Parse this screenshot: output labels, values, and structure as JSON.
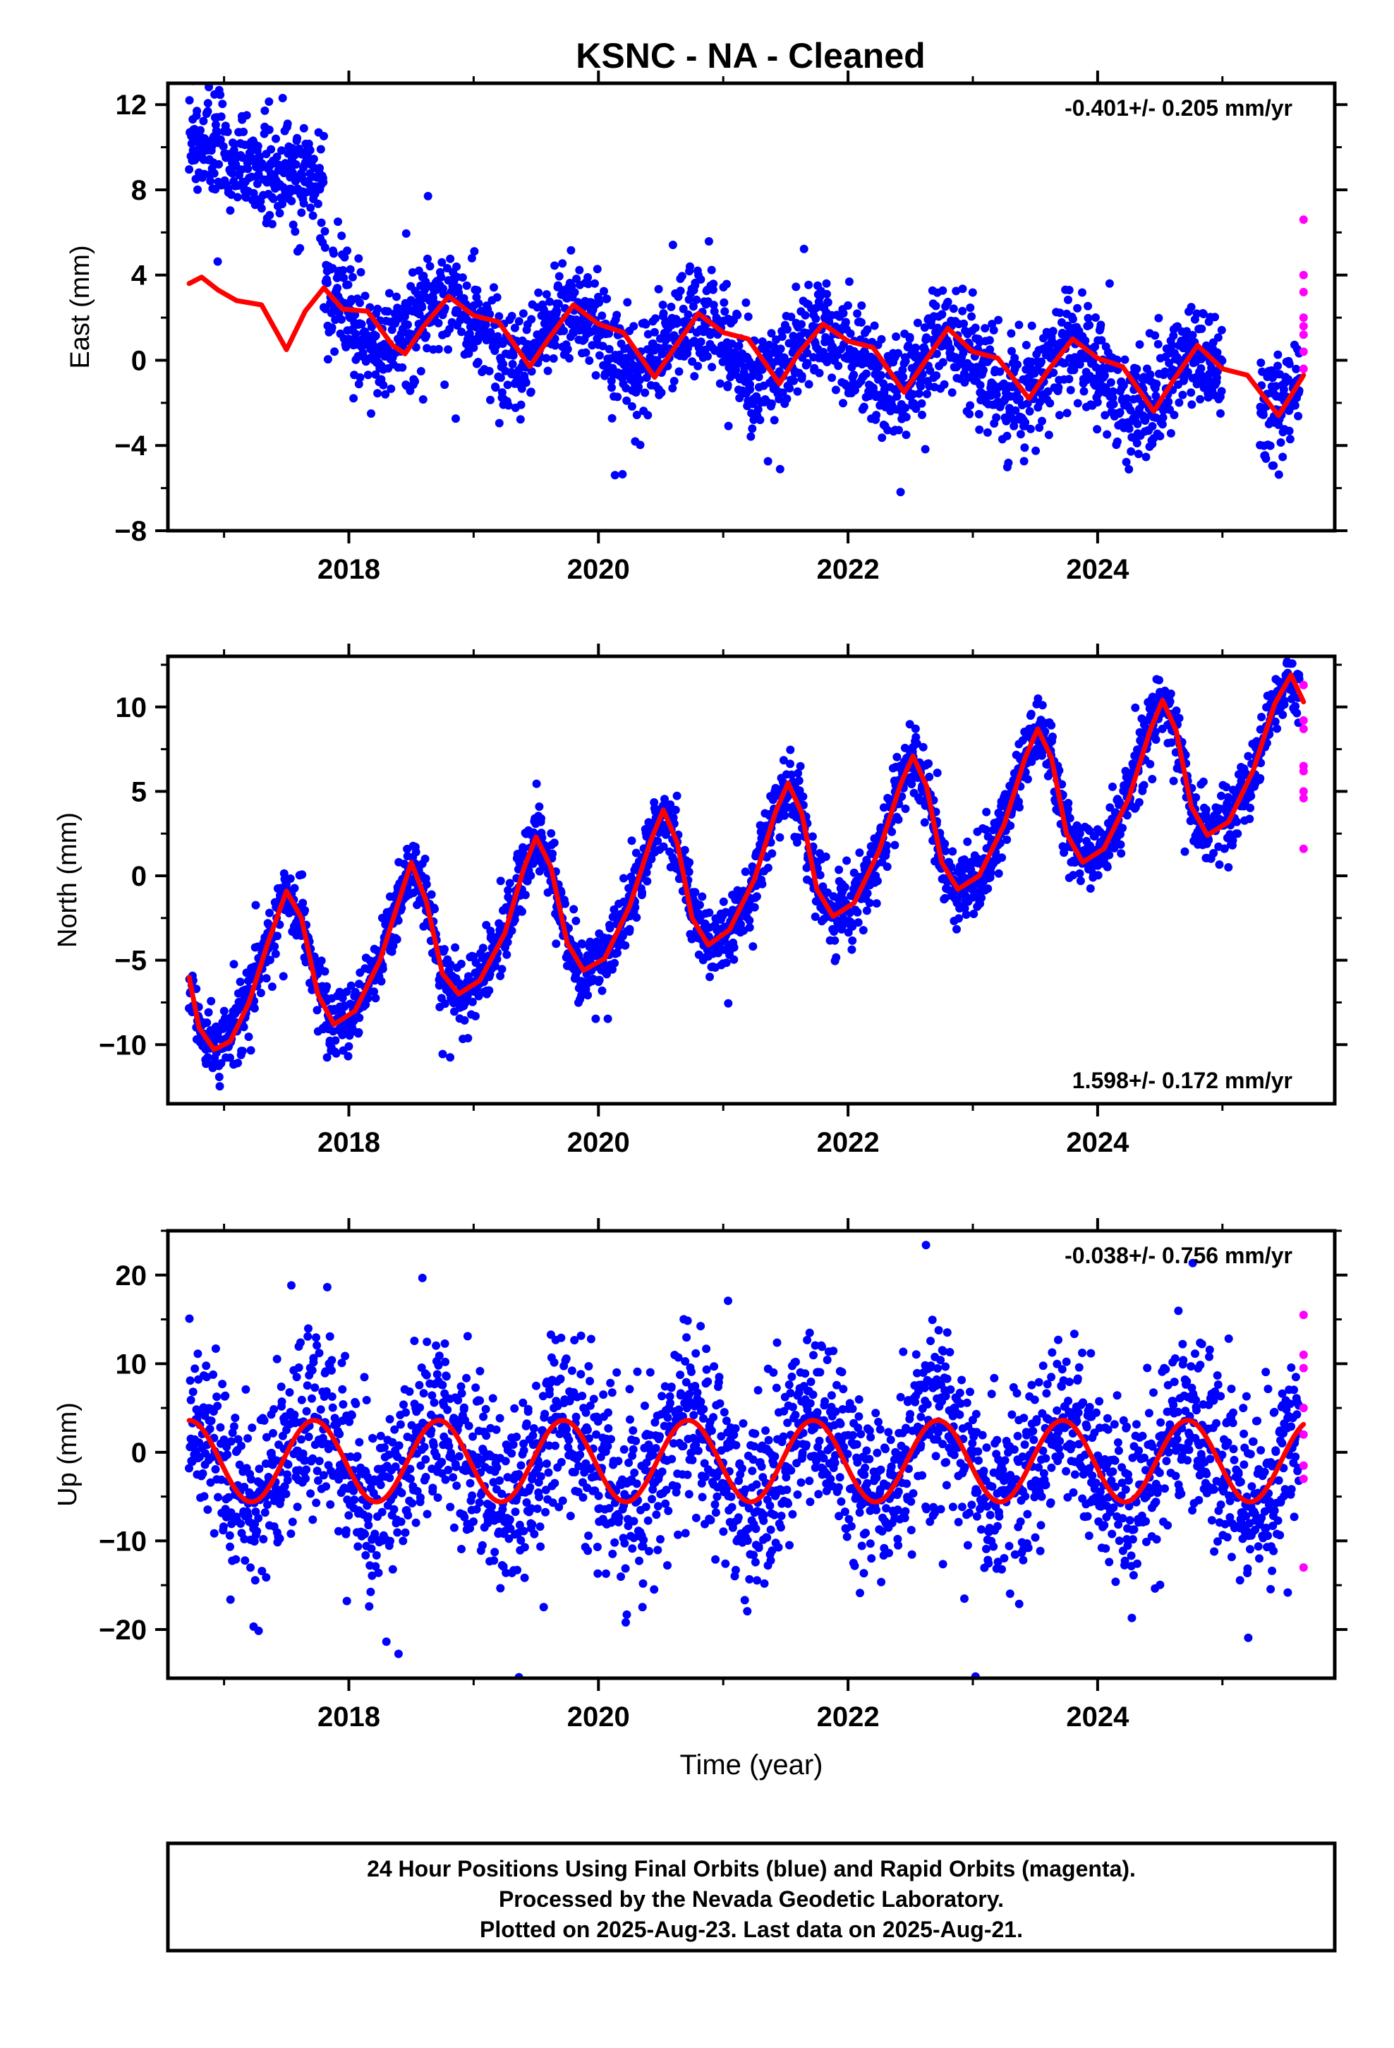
{
  "title": "KSNC  - NA - Cleaned",
  "colors": {
    "final": "#0000ff",
    "rapid": "#ff00ff",
    "model": "#ff0000",
    "frame": "#000000"
  },
  "chart_data": [
    {
      "type": "scatter",
      "id": "east",
      "ylabel": "East (mm)",
      "ylim": [
        -8,
        13
      ],
      "yticks": [
        -8,
        -4,
        0,
        4,
        8,
        12
      ],
      "xlim": [
        2016.55,
        2025.9
      ],
      "xticks": [
        2018,
        2020,
        2022,
        2024
      ],
      "xminor": [
        2017,
        2019,
        2021,
        2023,
        2025
      ],
      "rate": "-0.401+/- 0.205 mm/yr",
      "rate_position": "top-right",
      "series": [
        {
          "kind": "final",
          "segments": [
            {
              "x": [
                2016.72,
                2017.8
              ],
              "offset": 10.0,
              "trend": -1.5,
              "amp": 0.3,
              "noise": 1.2
            },
            {
              "x": [
                2017.8,
                2025.0
              ],
              "offset": 2.0,
              "trend": -0.45,
              "amp": 1.3,
              "noise": 1.2
            },
            {
              "x": [
                2025.3,
                2025.62
              ],
              "offset": -2.0,
              "trend": 0,
              "amp": 0.6,
              "noise": 1.3
            }
          ]
        },
        {
          "kind": "rapid",
          "x": 2025.65,
          "values": [
            6.6,
            4.0,
            3.2,
            2.0,
            1.6,
            1.2,
            0.4,
            -0.4
          ]
        },
        {
          "kind": "model",
          "points": [
            [
              2016.72,
              3.6
            ],
            [
              2016.82,
              3.9
            ],
            [
              2016.95,
              3.3
            ],
            [
              2017.1,
              2.8
            ],
            [
              2017.3,
              2.6
            ],
            [
              2017.5,
              0.5
            ],
            [
              2017.65,
              2.3
            ],
            [
              2017.8,
              3.4
            ],
            [
              2017.95,
              2.4
            ],
            [
              2018.15,
              2.3
            ],
            [
              2018.35,
              0.7
            ],
            [
              2018.45,
              0.3
            ],
            [
              2018.6,
              1.6
            ],
            [
              2018.8,
              3.0
            ],
            [
              2019.0,
              2.1
            ],
            [
              2019.2,
              1.8
            ],
            [
              2019.45,
              -0.3
            ],
            [
              2019.6,
              1.0
            ],
            [
              2019.8,
              2.6
            ],
            [
              2020.0,
              1.7
            ],
            [
              2020.2,
              1.3
            ],
            [
              2020.45,
              -0.8
            ],
            [
              2020.6,
              0.5
            ],
            [
              2020.8,
              2.2
            ],
            [
              2021.0,
              1.3
            ],
            [
              2021.2,
              1.0
            ],
            [
              2021.45,
              -1.1
            ],
            [
              2021.6,
              0.3
            ],
            [
              2021.8,
              1.7
            ],
            [
              2022.0,
              0.9
            ],
            [
              2022.2,
              0.6
            ],
            [
              2022.45,
              -1.5
            ],
            [
              2022.6,
              -0.2
            ],
            [
              2022.8,
              1.5
            ],
            [
              2023.0,
              0.4
            ],
            [
              2023.2,
              0.1
            ],
            [
              2023.45,
              -1.8
            ],
            [
              2023.6,
              -0.5
            ],
            [
              2023.8,
              1.0
            ],
            [
              2024.0,
              0.1
            ],
            [
              2024.2,
              -0.3
            ],
            [
              2024.45,
              -2.4
            ],
            [
              2024.6,
              -1.0
            ],
            [
              2024.8,
              0.7
            ],
            [
              2025.0,
              -0.4
            ],
            [
              2025.2,
              -0.7
            ],
            [
              2025.45,
              -2.6
            ],
            [
              2025.65,
              -0.7
            ]
          ]
        }
      ]
    },
    {
      "type": "scatter",
      "id": "north",
      "ylabel": "North (mm)",
      "ylim": [
        -13.5,
        13
      ],
      "yticks": [
        -10,
        -5,
        0,
        5,
        10
      ],
      "xlim": [
        2016.55,
        2025.9
      ],
      "xticks": [
        2018,
        2020,
        2022,
        2024
      ],
      "xminor": [
        2017,
        2019,
        2021,
        2023,
        2025
      ],
      "rate": "1.598+/- 0.172 mm/yr",
      "rate_position": "bottom-right",
      "series": [
        {
          "kind": "final",
          "segments": [
            {
              "x": [
                2016.72,
                2025.62
              ],
              "follow_model": true,
              "noise": 1.0
            }
          ]
        },
        {
          "kind": "rapid",
          "x": 2025.65,
          "values": [
            11.3,
            9.2,
            8.7,
            6.5,
            6.2,
            5.0,
            4.6,
            1.6
          ]
        },
        {
          "kind": "model",
          "points": [
            [
              2016.72,
              -6.0
            ],
            [
              2016.8,
              -9.0
            ],
            [
              2016.92,
              -10.3
            ],
            [
              2017.05,
              -9.8
            ],
            [
              2017.2,
              -7.5
            ],
            [
              2017.35,
              -4.0
            ],
            [
              2017.5,
              -0.9
            ],
            [
              2017.62,
              -2.5
            ],
            [
              2017.75,
              -7.0
            ],
            [
              2017.88,
              -8.8
            ],
            [
              2018.05,
              -8.0
            ],
            [
              2018.25,
              -5.0
            ],
            [
              2018.4,
              -1.5
            ],
            [
              2018.5,
              0.8
            ],
            [
              2018.62,
              -1.5
            ],
            [
              2018.75,
              -5.8
            ],
            [
              2018.88,
              -7.0
            ],
            [
              2019.05,
              -6.2
            ],
            [
              2019.25,
              -3.4
            ],
            [
              2019.4,
              0.4
            ],
            [
              2019.5,
              2.3
            ],
            [
              2019.62,
              0.5
            ],
            [
              2019.75,
              -4.0
            ],
            [
              2019.88,
              -5.6
            ],
            [
              2020.05,
              -4.9
            ],
            [
              2020.25,
              -1.8
            ],
            [
              2020.42,
              2.1
            ],
            [
              2020.52,
              3.9
            ],
            [
              2020.63,
              2.0
            ],
            [
              2020.75,
              -2.5
            ],
            [
              2020.88,
              -4.1
            ],
            [
              2021.05,
              -3.2
            ],
            [
              2021.25,
              -0.2
            ],
            [
              2021.42,
              3.8
            ],
            [
              2021.52,
              5.5
            ],
            [
              2021.63,
              3.7
            ],
            [
              2021.75,
              -0.8
            ],
            [
              2021.88,
              -2.4
            ],
            [
              2022.05,
              -1.6
            ],
            [
              2022.25,
              1.5
            ],
            [
              2022.42,
              5.4
            ],
            [
              2022.52,
              7.1
            ],
            [
              2022.63,
              5.3
            ],
            [
              2022.75,
              0.8
            ],
            [
              2022.88,
              -0.8
            ],
            [
              2023.05,
              0.0
            ],
            [
              2023.25,
              3.0
            ],
            [
              2023.42,
              7.0
            ],
            [
              2023.52,
              8.7
            ],
            [
              2023.63,
              7.0
            ],
            [
              2023.75,
              2.5
            ],
            [
              2023.88,
              0.8
            ],
            [
              2024.05,
              1.6
            ],
            [
              2024.25,
              4.6
            ],
            [
              2024.42,
              8.6
            ],
            [
              2024.52,
              10.4
            ],
            [
              2024.63,
              8.6
            ],
            [
              2024.75,
              4.1
            ],
            [
              2024.88,
              2.4
            ],
            [
              2025.05,
              3.2
            ],
            [
              2025.25,
              6.3
            ],
            [
              2025.42,
              10.2
            ],
            [
              2025.55,
              11.9
            ],
            [
              2025.65,
              10.3
            ]
          ]
        }
      ]
    },
    {
      "type": "scatter",
      "id": "up",
      "ylabel": "Up (mm)",
      "xlabel": "Time (year)",
      "ylim": [
        -25.5,
        25
      ],
      "yticks": [
        -20,
        -10,
        0,
        10,
        20
      ],
      "xlim": [
        2016.55,
        2025.9
      ],
      "xticks": [
        2018,
        2020,
        2022,
        2024
      ],
      "xminor": [
        2017,
        2019,
        2021,
        2023,
        2025
      ],
      "rate": "-0.038+/- 0.756 mm/yr",
      "rate_position": "top-right",
      "series": [
        {
          "kind": "final",
          "segments": [
            {
              "x": [
                2016.72,
                2025.62
              ],
              "follow_model": true,
              "noise": 5.0
            }
          ]
        },
        {
          "kind": "rapid",
          "x": 2025.65,
          "values": [
            15.5,
            11.0,
            9.5,
            5.0,
            2.0,
            -1.5,
            -3.0,
            -13.0
          ]
        },
        {
          "kind": "model",
          "sinusoid": {
            "x": [
              2016.72,
              2025.65
            ],
            "offset": -1.0,
            "amp": 4.6,
            "peak": 2016.72
          }
        }
      ]
    }
  ],
  "footer": [
    "24 Hour Positions Using Final Orbits (blue) and Rapid Orbits (magenta).",
    "Processed by the Nevada Geodetic Laboratory.",
    "Plotted on 2025-Aug-23. Last data on 2025-Aug-21."
  ]
}
